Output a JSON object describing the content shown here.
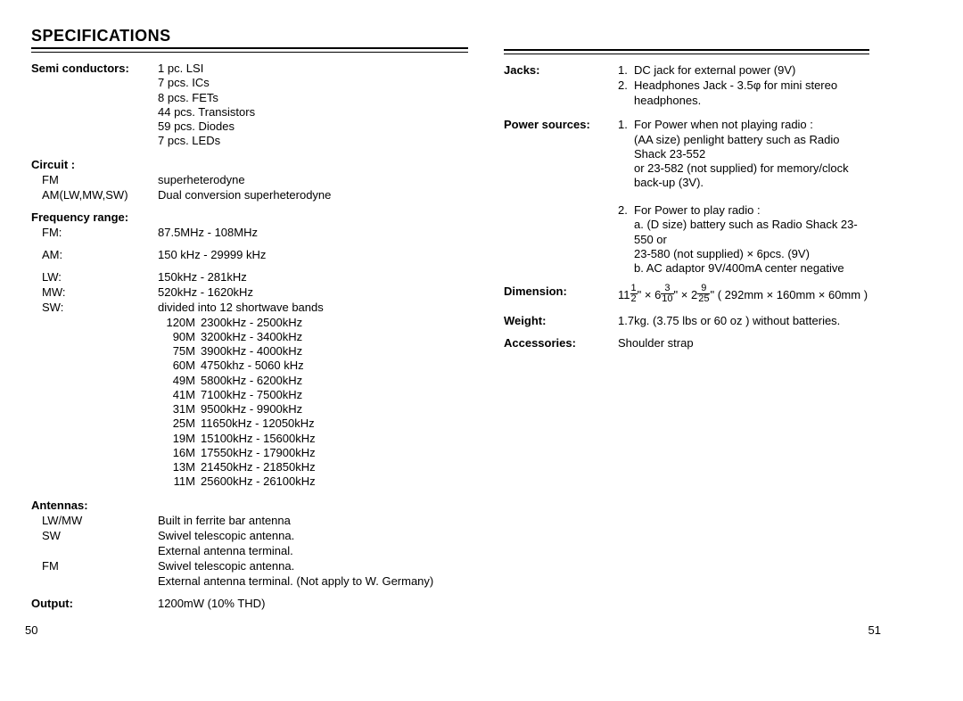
{
  "title": "SPECIFICATIONS",
  "page_left": "50",
  "page_right": "51",
  "left": {
    "semi_label": "Semi conductors:",
    "semi": [
      "1 pc. LSI",
      "7 pcs. ICs",
      "8 pcs. FETs",
      "44 pcs. Transistors",
      "59 pcs. Diodes",
      "7 pcs. LEDs"
    ],
    "circuit_label": "Circuit :",
    "circuit_fm_label": "FM",
    "circuit_fm_val": "superheterodyne",
    "circuit_am_label": "AM(LW,MW,SW)",
    "circuit_am_val": "Dual conversion superheterodyne",
    "freq_label": "Frequency range:",
    "freq_fm_label": "FM:",
    "freq_fm_val": "87.5MHz - 108MHz",
    "freq_am_label": "AM:",
    "freq_am_val": "150 kHz - 29999 kHz",
    "freq_lw_label": "LW:",
    "freq_lw_val": "150kHz - 281kHz",
    "freq_mw_label": "MW:",
    "freq_mw_val": "520kHz - 1620kHz",
    "freq_sw_label": "SW:",
    "freq_sw_val": "divided into 12 shortwave bands",
    "sw_bands": [
      {
        "b": "120M",
        "r": "2300kHz -   2500kHz"
      },
      {
        "b": "90M",
        "r": "3200kHz -   3400kHz"
      },
      {
        "b": "75M",
        "r": "3900kHz -   4000kHz"
      },
      {
        "b": "60M",
        "r": "4750khz -   5060 kHz"
      },
      {
        "b": "49M",
        "r": "5800kHz -   6200kHz"
      },
      {
        "b": "41M",
        "r": "7100kHz -   7500kHz"
      },
      {
        "b": "31M",
        "r": "9500kHz -   9900kHz"
      },
      {
        "b": "25M",
        "r": "11650kHz - 12050kHz"
      },
      {
        "b": "19M",
        "r": "15100kHz - 15600kHz"
      },
      {
        "b": "16M",
        "r": "17550kHz - 17900kHz"
      },
      {
        "b": "13M",
        "r": "21450kHz - 21850kHz"
      },
      {
        "b": "11M",
        "r": "25600kHz - 26100kHz"
      }
    ],
    "antennas_label": "Antennas:",
    "ant_lwmw_label": "LW/MW",
    "ant_lwmw_val": "Built in ferrite bar antenna",
    "ant_sw_label": "SW",
    "ant_sw_val1": "Swivel telescopic antenna.",
    "ant_sw_val2": "External antenna terminal.",
    "ant_fm_label": "FM",
    "ant_fm_val1": "Swivel telescopic antenna.",
    "ant_fm_val2": "External antenna terminal. (Not apply to W. Germany)",
    "output_label": "Output:",
    "output_val": "1200mW (10% THD)"
  },
  "right": {
    "jacks_label": "Jacks:",
    "jacks": [
      "DC jack for external power (9V)",
      "Headphones Jack - 3.5φ for mini stereo headphones."
    ],
    "power_label": "Power sources:",
    "power1_head": "For Power when not playing radio :",
    "power1_l1": "(AA size) penlight battery such as Radio Shack 23-552",
    "power1_l2": "or 23-582 (not supplied) for memory/clock back-up (3V).",
    "power2_head": "For Power to play radio :",
    "power2_l1": "a. (D size) battery such as Radio Shack 23-550 or",
    "power2_l2": "23-580 (not supplied) × 6pcs. (9V)",
    "power2_l3": "b. AC adaptor 9V/400mA center negative",
    "dim_label": "Dimension:",
    "dim_whole1": "11",
    "dim_frac1_t": "1",
    "dim_frac1_b": "2",
    "dim_whole2": "6",
    "dim_frac2_t": "3",
    "dim_frac2_b": "10",
    "dim_whole3": "2",
    "dim_frac3_t": "9",
    "dim_frac3_b": "25",
    "dim_rest": "( 292mm × 160mm × 60mm )",
    "weight_label": "Weight:",
    "weight_val": "1.7kg. (3.75 lbs or 60 oz ) without batteries.",
    "acc_label": "Accessories:",
    "acc_val": "Shoulder strap"
  }
}
